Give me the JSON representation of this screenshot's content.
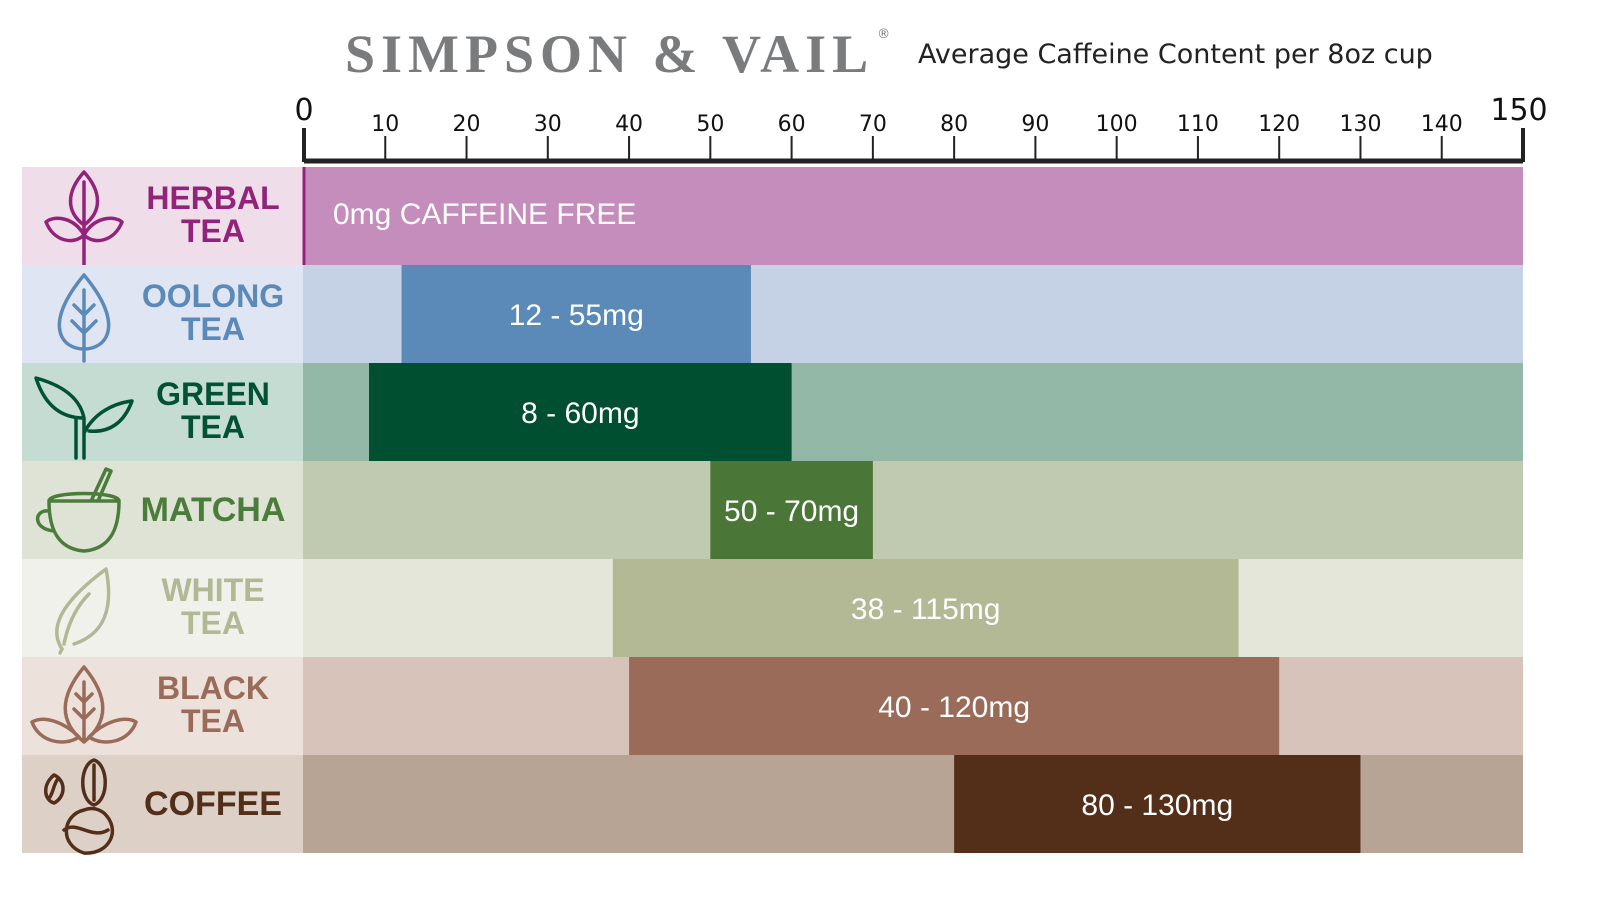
{
  "chart_data": {
    "type": "bar",
    "orientation": "horizontal-range",
    "brand": "SIMPSON & VAIL",
    "brand_mark": "®",
    "title": "Average Caffeine Content per 8oz cup",
    "xlim": [
      0,
      150
    ],
    "x_ticks": [
      0,
      10,
      20,
      30,
      40,
      50,
      60,
      70,
      80,
      90,
      100,
      110,
      120,
      130,
      140,
      150
    ],
    "x_tick_labels": [
      "0",
      "10",
      "20",
      "30",
      "40",
      "50",
      "60",
      "70",
      "80",
      "90",
      "100",
      "110",
      "120",
      "130",
      "140",
      "150"
    ],
    "grid": false,
    "legend": "none",
    "categories": [
      {
        "label_lines": [
          "HERBAL",
          "TEA"
        ],
        "icon": "herbal-sprig-icon",
        "min": 0,
        "max": 0,
        "value_label": "0mg CAFFEINE FREE",
        "color": "#c58dbc",
        "track": "#c58dbc",
        "label_bg": "#efdeea",
        "text_color": "#93237a"
      },
      {
        "label_lines": [
          "OOLONG",
          "TEA"
        ],
        "icon": "leaf-drop-icon",
        "min": 12,
        "max": 55,
        "value_label": "12 - 55mg",
        "color": "#5b8ab8",
        "track": "#c5d2e6",
        "label_bg": "#dfe5f2",
        "text_color": "#5b8ab8"
      },
      {
        "label_lines": [
          "GREEN",
          "TEA"
        ],
        "icon": "sprout-icon",
        "min": 8,
        "max": 60,
        "value_label": "8 - 60mg",
        "color": "#004f30",
        "track": "#93b8a8",
        "label_bg": "#c5dcd3",
        "text_color": "#005232"
      },
      {
        "label_lines": [
          "MATCHA"
        ],
        "icon": "matcha-cup-icon",
        "min": 50,
        "max": 70,
        "value_label": "50 - 70mg",
        "color": "#4a7637",
        "track": "#bfcab0",
        "label_bg": "#dfe3d6",
        "text_color": "#4a7c3a"
      },
      {
        "label_lines": [
          "WHITE",
          "TEA"
        ],
        "icon": "single-leaf-icon",
        "min": 38,
        "max": 115,
        "value_label": "38 - 115mg",
        "color": "#b3b995",
        "track": "#e4e6da",
        "label_bg": "#f1f1ec",
        "text_color": "#b0b894"
      },
      {
        "label_lines": [
          "BLACK",
          "TEA"
        ],
        "icon": "tea-leaves-icon",
        "min": 40,
        "max": 120,
        "value_label": "40 - 120mg",
        "color": "#9a6b58",
        "track": "#d8c3bb",
        "label_bg": "#ede1dc",
        "text_color": "#9a6b58"
      },
      {
        "label_lines": [
          "COFFEE"
        ],
        "icon": "coffee-beans-icon",
        "min": 80,
        "max": 130,
        "value_label": "80 - 130mg",
        "color": "#532f19",
        "track": "#b7a495",
        "label_bg": "#dcd0c7",
        "text_color": "#532f19"
      }
    ]
  }
}
